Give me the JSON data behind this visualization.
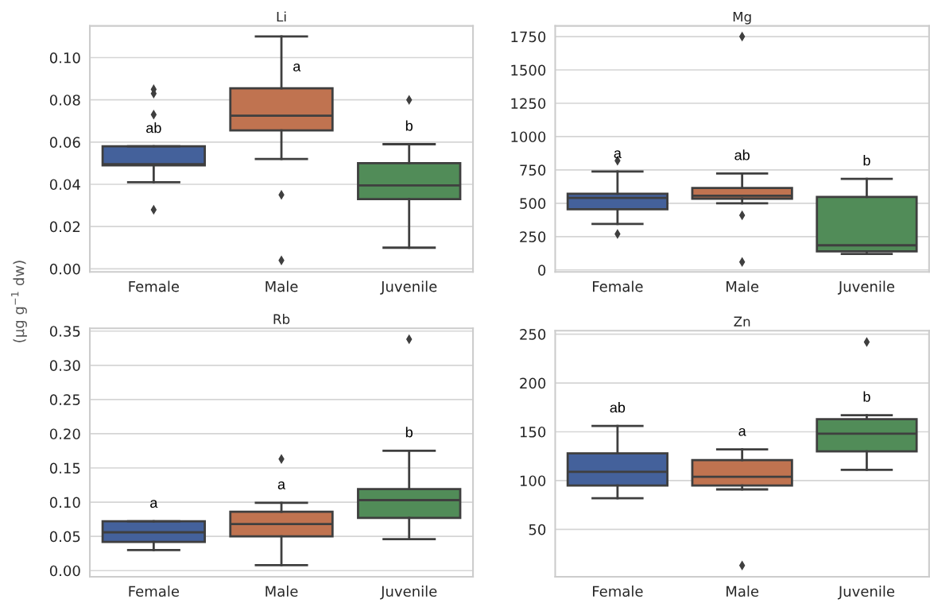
{
  "chart_data": [
    {
      "type": "box",
      "title": "Li",
      "ylabel": "(μg g$^{−1}$ dw)",
      "categories": [
        "Female",
        "Male",
        "Juvenile"
      ],
      "colors": [
        "#44619b",
        "#c07350",
        "#518c58"
      ],
      "marker": "diamond",
      "grid": "y",
      "boxes": [
        {
          "low": 0.041,
          "q1": 0.049,
          "median": 0.0495,
          "q3": 0.058,
          "high": 0.058,
          "outliers": [
            0.085,
            0.083,
            0.073,
            0.028
          ]
        },
        {
          "low": 0.052,
          "q1": 0.0655,
          "median": 0.0725,
          "q3": 0.0855,
          "high": 0.11,
          "outliers": [
            0.035,
            0.004
          ]
        },
        {
          "low": 0.01,
          "q1": 0.033,
          "median": 0.0395,
          "q3": 0.05,
          "high": 0.059,
          "outliers": [
            0.08
          ]
        }
      ],
      "ylim": [
        -0.0015,
        0.115
      ],
      "yticks": [
        {
          "value": 0,
          "label": "0.00"
        },
        {
          "value": 0.02,
          "label": "0.02"
        },
        {
          "value": 0.04,
          "label": "0.04"
        },
        {
          "value": 0.06,
          "label": "0.06"
        },
        {
          "value": 0.08,
          "label": "0.08"
        },
        {
          "value": 0.1,
          "label": "0.10"
        }
      ],
      "annotations": [
        "ab",
        "a",
        "b"
      ]
    },
    {
      "type": "box",
      "title": "Mg",
      "categories": [
        "Female",
        "Male",
        "Juvenile"
      ],
      "colors": [
        "#44619b",
        "#c07350",
        "#518c58"
      ],
      "marker": "diamond",
      "grid": "y",
      "boxes": [
        {
          "low": 345,
          "q1": 455,
          "median": 540,
          "q3": 572,
          "high": 738,
          "outliers": [
            820,
            270
          ]
        },
        {
          "low": 500,
          "q1": 535,
          "median": 557,
          "q3": 615,
          "high": 723,
          "outliers": [
            1750,
            410,
            60
          ]
        },
        {
          "low": 120,
          "q1": 140,
          "median": 185,
          "q3": 548,
          "high": 683
        }
      ],
      "ylim": [
        -15,
        1830
      ],
      "yticks": [
        0,
        250,
        500,
        750,
        1000,
        1250,
        1500,
        1750
      ],
      "annotations": [
        "a",
        "ab",
        "b"
      ]
    },
    {
      "type": "box",
      "title": "Rb",
      "categories": [
        "Female",
        "Male",
        "Juvenile"
      ],
      "colors": [
        "#44619b",
        "#c07350",
        "#518c58"
      ],
      "marker": "diamond",
      "grid": "y",
      "boxes": [
        {
          "low": 0.03,
          "q1": 0.042,
          "median": 0.056,
          "q3": 0.072,
          "high": 0.072
        },
        {
          "low": 0.008,
          "q1": 0.05,
          "median": 0.068,
          "q3": 0.086,
          "high": 0.099,
          "outliers": [
            0.163
          ]
        },
        {
          "low": 0.046,
          "q1": 0.077,
          "median": 0.103,
          "q3": 0.119,
          "high": 0.175,
          "outliers": [
            0.338
          ]
        }
      ],
      "ylim": [
        -0.009,
        0.354
      ],
      "yticks": [
        {
          "value": 0,
          "label": "0.00"
        },
        {
          "value": 0.05,
          "label": "0.05"
        },
        {
          "value": 0.1,
          "label": "0.10"
        },
        {
          "value": 0.15,
          "label": "0.15"
        },
        {
          "value": 0.2,
          "label": "0.20"
        },
        {
          "value": 0.25,
          "label": "0.25"
        },
        {
          "value": 0.3,
          "label": "0.30"
        },
        {
          "value": 0.35,
          "label": "0.35"
        }
      ],
      "annotations": [
        "a",
        "a",
        "b"
      ]
    },
    {
      "type": "box",
      "title": "Zn",
      "categories": [
        "Female",
        "Male",
        "Juvenile"
      ],
      "colors": [
        "#44619b",
        "#c07350",
        "#518c58"
      ],
      "marker": "diamond",
      "grid": "y",
      "boxes": [
        {
          "low": 82,
          "q1": 95,
          "median": 109,
          "q3": 128,
          "high": 156
        },
        {
          "low": 91,
          "q1": 95,
          "median": 104,
          "q3": 121,
          "high": 132,
          "outliers": [
            13
          ]
        },
        {
          "low": 111,
          "q1": 130,
          "median": 148,
          "q3": 163,
          "high": 167,
          "outliers": [
            242
          ]
        }
      ],
      "ylim": [
        1.5,
        253.5
      ],
      "yticks": [
        50,
        100,
        150,
        200,
        250
      ],
      "annotations": [
        "ab",
        "a",
        "b"
      ]
    }
  ]
}
